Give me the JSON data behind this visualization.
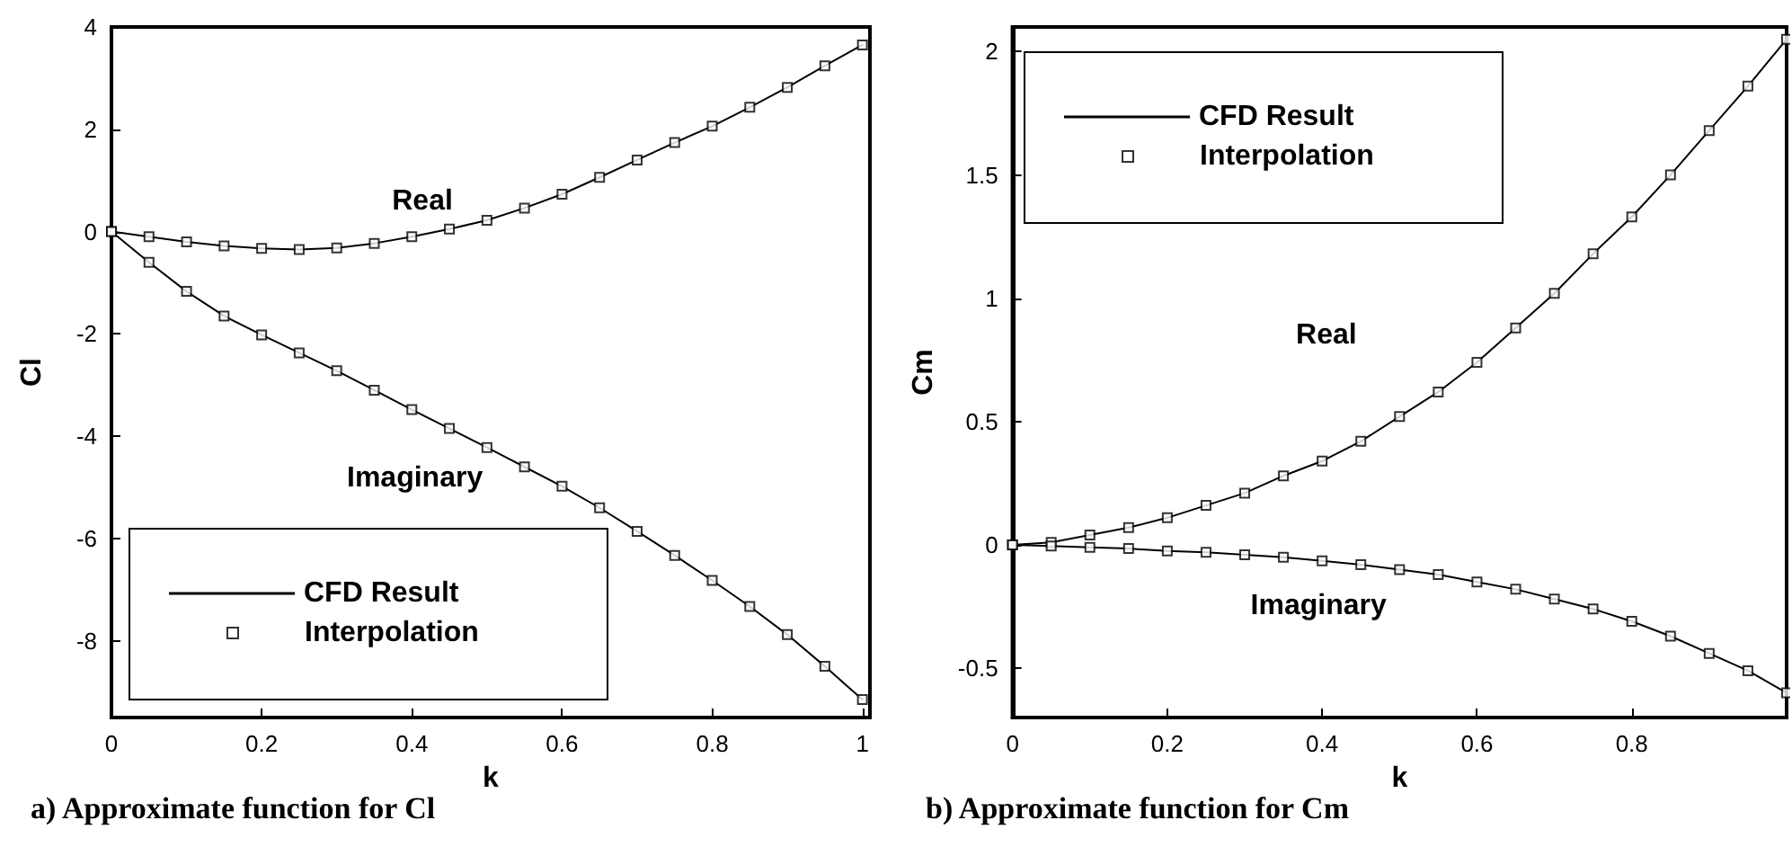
{
  "chart_data": [
    {
      "type": "line",
      "title": "a) Approximate function for Cl",
      "xlabel": "k",
      "ylabel": "Cl",
      "x": [
        0,
        0.05,
        0.1,
        0.15,
        0.2,
        0.25,
        0.3,
        0.35,
        0.4,
        0.45,
        0.5,
        0.55,
        0.6,
        0.65,
        0.7,
        0.75,
        0.8,
        0.85,
        0.9,
        0.95,
        1
      ],
      "series": [
        {
          "name": "CFD Result",
          "color": "#000000",
          "marker": "none",
          "values": [
            0,
            -0.1,
            -0.2,
            -0.28,
            -0.33,
            -0.35,
            -0.32,
            -0.23,
            -0.1,
            0.05,
            0.22,
            0.46,
            0.73,
            1.06,
            1.4,
            1.74,
            2.06,
            2.43,
            2.82,
            3.24,
            3.65
          ]
        },
        {
          "color": "#000000",
          "marker": "none",
          "values": [
            0,
            -0.6,
            -1.17,
            -1.65,
            -2.02,
            -2.37,
            -2.72,
            -3.1,
            -3.48,
            -3.85,
            -4.22,
            -4.6,
            -4.98,
            -5.4,
            -5.86,
            -6.33,
            -6.82,
            -7.33,
            -7.88,
            -8.5,
            -9.15
          ]
        },
        {
          "name": "Interpolation",
          "type": "scatter",
          "color": "#000000",
          "marker": "square",
          "values": [
            0,
            -0.1,
            -0.2,
            -0.28,
            -0.33,
            -0.35,
            -0.32,
            -0.23,
            -0.1,
            0.05,
            0.22,
            0.46,
            0.73,
            1.06,
            1.4,
            1.74,
            2.06,
            2.43,
            2.82,
            3.24,
            3.65
          ]
        },
        {
          "type": "scatter",
          "color": "#000000",
          "marker": "square",
          "values": [
            0,
            -0.6,
            -1.17,
            -1.65,
            -2.02,
            -2.37,
            -2.72,
            -3.1,
            -3.48,
            -3.85,
            -4.22,
            -4.6,
            -4.98,
            -5.4,
            -5.86,
            -6.33,
            -6.82,
            -7.33,
            -7.88,
            -8.5,
            -9.15
          ]
        }
      ],
      "annotations": [
        "Real",
        "Imaginary"
      ],
      "xlim": [
        0,
        1.01
      ],
      "xticks": [
        0,
        0.2,
        0.4,
        0.6,
        0.8,
        1
      ],
      "ylim": [
        -9.5,
        4
      ],
      "yticks": [
        -8,
        -6,
        -4,
        -2,
        0,
        2,
        4
      ],
      "legend": "bottom left",
      "line_style": "solid"
    },
    {
      "type": "line",
      "title": "b) Approximate function for Cm",
      "xlabel": "k",
      "ylabel": "Cm",
      "x": [
        0,
        0.05,
        0.1,
        0.15,
        0.2,
        0.25,
        0.3,
        0.35,
        0.4,
        0.45,
        0.5,
        0.55,
        0.6,
        0.65,
        0.7,
        0.75,
        0.8,
        0.85,
        0.9,
        0.95,
        1
      ],
      "series": [
        {
          "name": "CFD Result",
          "color": "#000000",
          "marker": "none",
          "values": [
            0,
            0.01,
            0.04,
            0.07,
            0.11,
            0.16,
            0.21,
            0.28,
            0.34,
            0.42,
            0.52,
            0.62,
            0.74,
            0.88,
            1.02,
            1.18,
            1.33,
            1.5,
            1.68,
            1.86,
            2.05
          ]
        },
        {
          "color": "#000000",
          "marker": "none",
          "values": [
            0,
            -0.005,
            -0.01,
            -0.015,
            -0.025,
            -0.03,
            -0.04,
            -0.05,
            -0.065,
            -0.08,
            -0.1,
            -0.12,
            -0.15,
            -0.18,
            -0.22,
            -0.26,
            -0.31,
            -0.37,
            -0.44,
            -0.51,
            -0.6
          ]
        },
        {
          "name": "Interpolation",
          "type": "scatter",
          "color": "#000000",
          "marker": "square",
          "values": [
            0,
            0.01,
            0.04,
            0.07,
            0.11,
            0.16,
            0.21,
            0.28,
            0.34,
            0.42,
            0.52,
            0.62,
            0.74,
            0.88,
            1.02,
            1.18,
            1.33,
            1.5,
            1.68,
            1.86,
            2.05
          ]
        },
        {
          "type": "scatter",
          "color": "#000000",
          "marker": "square",
          "values": [
            0,
            -0.005,
            -0.01,
            -0.015,
            -0.025,
            -0.03,
            -0.04,
            -0.05,
            -0.065,
            -0.08,
            -0.1,
            -0.12,
            -0.15,
            -0.18,
            -0.22,
            -0.26,
            -0.31,
            -0.37,
            -0.44,
            -0.51,
            -0.6
          ]
        }
      ],
      "annotations": [
        "Real",
        "Imaginary"
      ],
      "xlim": [
        0,
        1
      ],
      "xticks": [
        0,
        0.2,
        0.4,
        0.6,
        0.8
      ],
      "ylim": [
        -0.7,
        2.1
      ],
      "yticks": [
        -0.5,
        0,
        0.5,
        1,
        1.5,
        2
      ],
      "legend": "top left",
      "line_style": "solid"
    }
  ]
}
